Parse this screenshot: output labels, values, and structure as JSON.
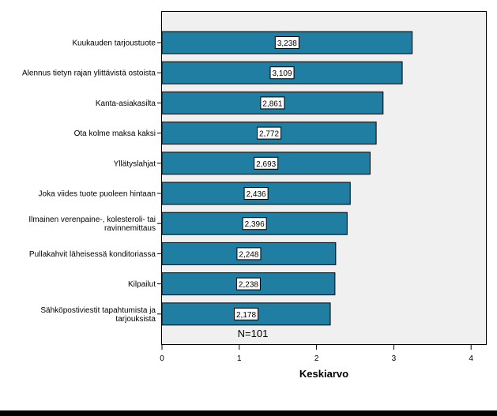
{
  "chart_data": {
    "type": "bar",
    "orientation": "horizontal",
    "categories": [
      [
        "Kuukauden tarjoustuote"
      ],
      [
        "Alennus tietyn rajan ylittävistä ostoista"
      ],
      [
        "Kanta-asiakasilta"
      ],
      [
        "Ota kolme maksa kaksi"
      ],
      [
        "Yllätyslahjat"
      ],
      [
        "Joka viides tuote puoleen hintaan"
      ],
      [
        "Ilmainen verenpaine-, kolesteroli- tai",
        "ravinnemittaus"
      ],
      [
        "Pullakahvit läheisessä konditoriassa"
      ],
      [
        "Kilpailut"
      ],
      [
        "Sähköpostiviestit tapahtumista ja",
        "tarjouksista"
      ]
    ],
    "values": [
      3.238,
      3.109,
      2.861,
      2.772,
      2.693,
      2.436,
      2.396,
      2.248,
      2.238,
      2.178
    ],
    "value_labels": [
      "3,238",
      "3,109",
      "2,861",
      "2,772",
      "2,693",
      "2,436",
      "2,396",
      "2,248",
      "2,238",
      "2,178"
    ],
    "xlabel": "Keskiarvo",
    "xlim": [
      0,
      4
    ],
    "xticks": [
      "0",
      "1",
      "2",
      "3",
      "4"
    ],
    "annotation": "N=101",
    "grid": false,
    "bar_color": "#1f7ea1",
    "plot_background": "#f0f0f0"
  }
}
